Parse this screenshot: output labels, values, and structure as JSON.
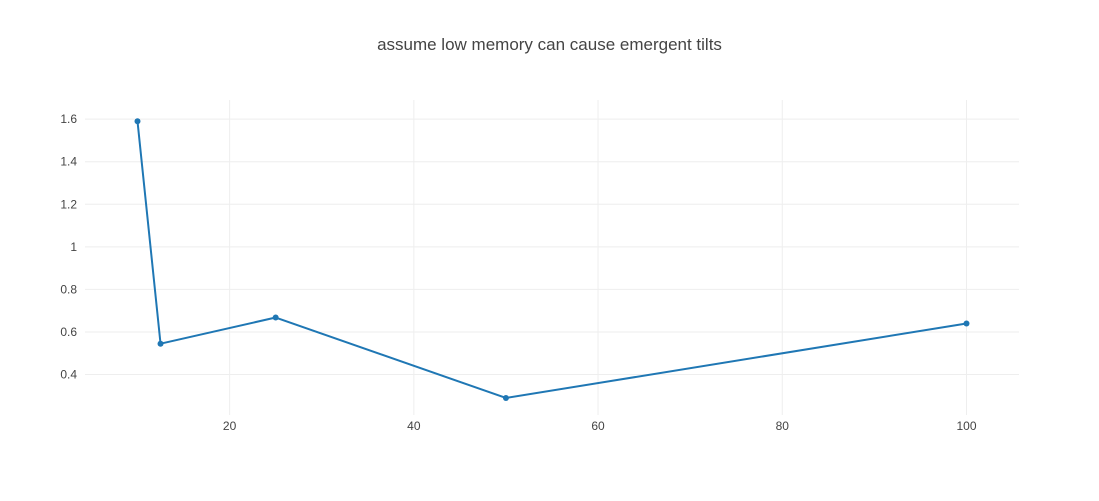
{
  "chart_data": {
    "type": "line",
    "title": "assume low memory can cause emergent tilts",
    "xlabel": "",
    "ylabel": "",
    "x_ticks": [
      20,
      40,
      60,
      80,
      100
    ],
    "y_ticks": [
      0.4,
      0.6,
      0.8,
      1,
      1.2,
      1.4,
      1.6
    ],
    "x_tick_labels": [
      "20",
      "40",
      "60",
      "80",
      "100"
    ],
    "y_tick_labels": [
      "0.4",
      "0.6",
      "0.8",
      "1",
      "1.2",
      "1.4",
      "1.6"
    ],
    "xlim": [
      4.3,
      105.7
    ],
    "ylim": [
      0.21,
      1.69
    ],
    "grid": true,
    "legend": "none",
    "series": [
      {
        "color": "#1f77b4",
        "x": [
          10,
          12.5,
          25,
          50,
          100
        ],
        "y": [
          1.59,
          0.545,
          0.668,
          0.29,
          0.64
        ]
      }
    ]
  }
}
